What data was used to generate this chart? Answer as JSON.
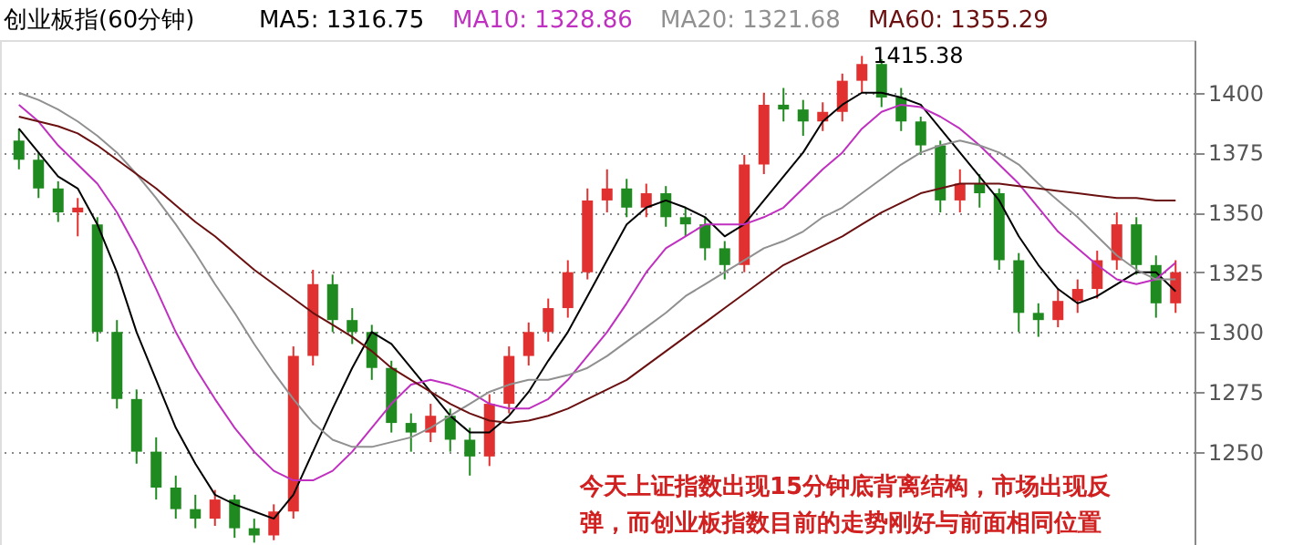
{
  "chart_data": {
    "type": "candlestick",
    "title": "创业板指(60分钟)",
    "categories": [
      null,
      null,
      null,
      null,
      null,
      null,
      null,
      null,
      null,
      null,
      null,
      null,
      null,
      null,
      null,
      null,
      null,
      null,
      null,
      null,
      null,
      null,
      null,
      null,
      null,
      null,
      null,
      null,
      null,
      null,
      null,
      null,
      null,
      null,
      null,
      null,
      null,
      null,
      null,
      null,
      null,
      null,
      null,
      null,
      null,
      null,
      null,
      null,
      null,
      null,
      null,
      null,
      null,
      null,
      null,
      null,
      null,
      null,
      null,
      null
    ],
    "ohlc": [
      [
        1380,
        1385,
        1368,
        1372
      ],
      [
        1372,
        1375,
        1356,
        1360
      ],
      [
        1360,
        1363,
        1346,
        1350
      ],
      [
        1350,
        1356,
        1340,
        1352
      ],
      [
        1345,
        1348,
        1296,
        1300
      ],
      [
        1300,
        1305,
        1268,
        1272
      ],
      [
        1272,
        1276,
        1245,
        1250
      ],
      [
        1250,
        1256,
        1230,
        1235
      ],
      [
        1235,
        1240,
        1222,
        1226
      ],
      [
        1226,
        1232,
        1218,
        1222
      ],
      [
        1222,
        1234,
        1219,
        1230
      ],
      [
        1230,
        1232,
        1214,
        1218
      ],
      [
        1218,
        1222,
        1212,
        1215
      ],
      [
        1215,
        1228,
        1213,
        1225
      ],
      [
        1225,
        1294,
        1222,
        1290
      ],
      [
        1290,
        1326,
        1286,
        1320
      ],
      [
        1320,
        1324,
        1300,
        1305
      ],
      [
        1305,
        1310,
        1295,
        1300
      ],
      [
        1300,
        1303,
        1280,
        1285
      ],
      [
        1285,
        1288,
        1258,
        1262
      ],
      [
        1262,
        1266,
        1250,
        1258
      ],
      [
        1258,
        1270,
        1254,
        1265
      ],
      [
        1265,
        1268,
        1250,
        1255
      ],
      [
        1255,
        1260,
        1240,
        1248
      ],
      [
        1248,
        1274,
        1244,
        1270
      ],
      [
        1270,
        1294,
        1266,
        1290
      ],
      [
        1290,
        1304,
        1286,
        1300
      ],
      [
        1300,
        1314,
        1296,
        1310
      ],
      [
        1310,
        1330,
        1306,
        1325
      ],
      [
        1325,
        1360,
        1322,
        1355
      ],
      [
        1355,
        1368,
        1350,
        1360
      ],
      [
        1360,
        1364,
        1348,
        1352
      ],
      [
        1352,
        1362,
        1348,
        1358
      ],
      [
        1358,
        1361,
        1344,
        1348
      ],
      [
        1348,
        1352,
        1340,
        1345
      ],
      [
        1345,
        1348,
        1330,
        1335
      ],
      [
        1335,
        1338,
        1322,
        1328
      ],
      [
        1328,
        1374,
        1325,
        1370
      ],
      [
        1370,
        1400,
        1366,
        1395
      ],
      [
        1395,
        1402,
        1388,
        1393
      ],
      [
        1393,
        1397,
        1382,
        1388
      ],
      [
        1388,
        1396,
        1384,
        1392
      ],
      [
        1392,
        1408,
        1388,
        1405
      ],
      [
        1405,
        1415.38,
        1400,
        1412
      ],
      [
        1412,
        1414,
        1394,
        1398
      ],
      [
        1398,
        1402,
        1384,
        1388
      ],
      [
        1388,
        1390,
        1374,
        1378
      ],
      [
        1378,
        1380,
        1350,
        1355
      ],
      [
        1355,
        1368,
        1350,
        1362
      ],
      [
        1362,
        1366,
        1352,
        1358
      ],
      [
        1358,
        1360,
        1326,
        1330
      ],
      [
        1330,
        1333,
        1300,
        1308
      ],
      [
        1308,
        1312,
        1298,
        1305
      ],
      [
        1305,
        1318,
        1302,
        1313
      ],
      [
        1313,
        1322,
        1308,
        1318
      ],
      [
        1318,
        1334,
        1314,
        1330
      ],
      [
        1330,
        1350,
        1326,
        1345
      ],
      [
        1345,
        1348,
        1324,
        1328
      ],
      [
        1328,
        1332,
        1306,
        1312
      ],
      [
        1312,
        1330,
        1308,
        1325
      ]
    ],
    "colors": [
      "#1f8a1f",
      "#1f8a1f",
      "#1f8a1f",
      "#e0302f",
      "#1f8a1f",
      "#1f8a1f",
      "#1f8a1f",
      "#1f8a1f",
      "#1f8a1f",
      "#1f8a1f",
      "#e0302f",
      "#1f8a1f",
      "#1f8a1f",
      "#e0302f",
      "#e0302f",
      "#e0302f",
      "#1f8a1f",
      "#1f8a1f",
      "#1f8a1f",
      "#1f8a1f",
      "#1f8a1f",
      "#e0302f",
      "#1f8a1f",
      "#1f8a1f",
      "#e0302f",
      "#e0302f",
      "#e0302f",
      "#e0302f",
      "#e0302f",
      "#e0302f",
      "#e0302f",
      "#1f8a1f",
      "#e0302f",
      "#1f8a1f",
      "#1f8a1f",
      "#1f8a1f",
      "#1f8a1f",
      "#e0302f",
      "#e0302f",
      "#1f8a1f",
      "#1f8a1f",
      "#e0302f",
      "#e0302f",
      "#e0302f",
      "#1f8a1f",
      "#1f8a1f",
      "#1f8a1f",
      "#1f8a1f",
      "#e0302f",
      "#1f8a1f",
      "#1f8a1f",
      "#1f8a1f",
      "#1f8a1f",
      "#e0302f",
      "#e0302f",
      "#e0302f",
      "#e0302f",
      "#1f8a1f",
      "#1f8a1f",
      "#e0302f"
    ],
    "series": [
      {
        "name": "MA5: 1316.75",
        "type": "line",
        "color": "#000000",
        "values": [
          1385,
          1375,
          1365,
          1360,
          1345,
          1325,
          1300,
          1280,
          1260,
          1245,
          1232,
          1228,
          1225,
          1222,
          1232,
          1250,
          1268,
          1285,
          1300,
          1295,
          1285,
          1275,
          1265,
          1258,
          1258,
          1265,
          1275,
          1288,
          1300,
          1315,
          1330,
          1345,
          1352,
          1355,
          1352,
          1348,
          1340,
          1345,
          1355,
          1365,
          1375,
          1388,
          1395,
          1400,
          1400,
          1398,
          1395,
          1385,
          1375,
          1365,
          1355,
          1340,
          1328,
          1318,
          1312,
          1315,
          1320,
          1325,
          1325,
          1317
        ]
      },
      {
        "name": "MA10: 1328.86",
        "type": "line",
        "color": "#c030c0",
        "values": [
          1395,
          1388,
          1378,
          1370,
          1362,
          1350,
          1335,
          1318,
          1300,
          1285,
          1272,
          1260,
          1250,
          1242,
          1238,
          1238,
          1242,
          1250,
          1260,
          1270,
          1278,
          1280,
          1278,
          1275,
          1270,
          1268,
          1268,
          1272,
          1280,
          1290,
          1300,
          1312,
          1325,
          1335,
          1340,
          1345,
          1345,
          1345,
          1348,
          1352,
          1360,
          1368,
          1375,
          1385,
          1392,
          1395,
          1394,
          1390,
          1385,
          1378,
          1370,
          1362,
          1352,
          1342,
          1335,
          1328,
          1322,
          1320,
          1322,
          1329
        ]
      },
      {
        "name": "MA20: 1321.68",
        "type": "line",
        "color": "#909090",
        "values": [
          1400,
          1397,
          1393,
          1388,
          1382,
          1375,
          1366,
          1356,
          1345,
          1333,
          1320,
          1308,
          1295,
          1283,
          1272,
          1262,
          1255,
          1252,
          1252,
          1254,
          1256,
          1260,
          1265,
          1270,
          1275,
          1278,
          1280,
          1280,
          1282,
          1285,
          1290,
          1296,
          1302,
          1308,
          1315,
          1320,
          1325,
          1330,
          1335,
          1338,
          1342,
          1348,
          1352,
          1358,
          1364,
          1370,
          1375,
          1378,
          1380,
          1378,
          1375,
          1370,
          1362,
          1355,
          1348,
          1340,
          1332,
          1326,
          1322,
          1322
        ]
      },
      {
        "name": "MA60: 1355.29",
        "type": "line",
        "color": "#6b1010",
        "values": [
          1390,
          1388,
          1386,
          1383,
          1378,
          1372,
          1366,
          1360,
          1353,
          1346,
          1340,
          1333,
          1326,
          1320,
          1314,
          1308,
          1303,
          1298,
          1292,
          1285,
          1280,
          1275,
          1270,
          1266,
          1263,
          1262,
          1263,
          1265,
          1268,
          1272,
          1276,
          1280,
          1286,
          1292,
          1298,
          1304,
          1310,
          1316,
          1322,
          1328,
          1332,
          1336,
          1340,
          1345,
          1350,
          1354,
          1358,
          1360,
          1362,
          1362,
          1362,
          1361,
          1360,
          1359,
          1358,
          1357,
          1356,
          1356,
          1355,
          1355
        ]
      }
    ],
    "ylim": [
      1211,
      1422
    ],
    "yticks": [
      1250,
      1275,
      1300,
      1325,
      1350,
      1375,
      1400
    ],
    "grid": "y",
    "tick_labels": "y",
    "legend": "top left",
    "annotations": [
      "1415.38",
      "今天上证指数出现15分钟底背离结构，市场出现反弹，而创业板指数目前的走势刚好与前面相同位置"
    ]
  }
}
